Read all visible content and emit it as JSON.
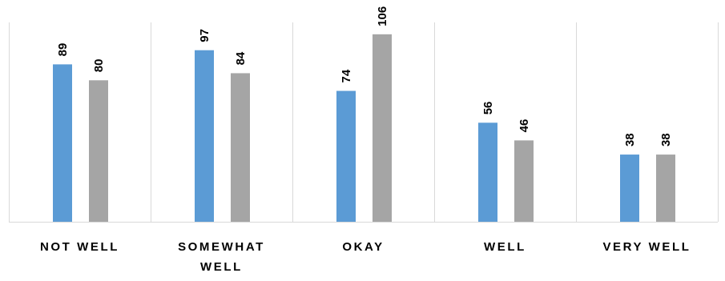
{
  "chart_data": {
    "type": "bar",
    "title": "",
    "xlabel": "",
    "ylabel": "",
    "categories": [
      [
        "NOT WELL"
      ],
      [
        "SOMEWHAT",
        "WELL"
      ],
      [
        "OKAY"
      ],
      [
        "WELL"
      ],
      [
        "VERY WELL"
      ]
    ],
    "series": [
      {
        "values": [
          89,
          97,
          74,
          56,
          38
        ],
        "color": "#5b9bd5"
      },
      {
        "values": [
          80,
          84,
          106,
          46,
          38
        ],
        "color": "#a5a5a5"
      }
    ],
    "ylim": [
      0,
      110
    ],
    "grid": "vertical category separators",
    "legend": "none",
    "axis_color": "#d9d9d9"
  }
}
